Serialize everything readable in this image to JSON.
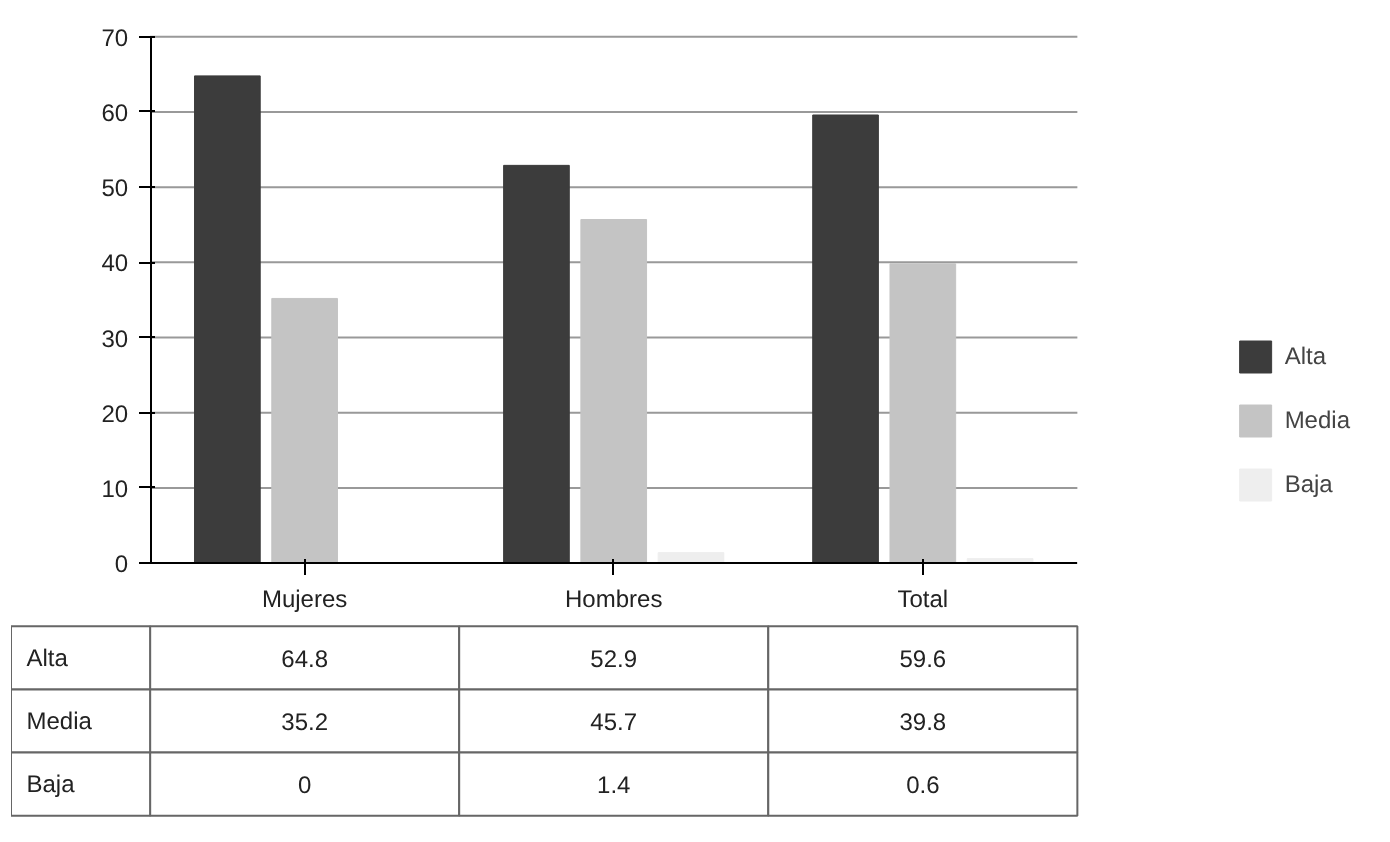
{
  "chart_data": {
    "type": "bar",
    "categories": [
      "Mujeres",
      "Hombres",
      "Total"
    ],
    "series": [
      {
        "name": "Alta",
        "color": "#3c3c3c",
        "values": [
          64.8,
          52.9,
          59.6
        ]
      },
      {
        "name": "Media",
        "color": "#c4c4c4",
        "values": [
          35.2,
          45.7,
          39.8
        ]
      },
      {
        "name": "Baja",
        "color": "#eeeeee",
        "values": [
          0,
          1.4,
          0.6
        ]
      }
    ],
    "ylim": [
      0,
      70
    ],
    "yticks": [
      0,
      10,
      20,
      30,
      40,
      50,
      60,
      70
    ],
    "grid": "y",
    "legend": "right",
    "data_labels": true
  }
}
